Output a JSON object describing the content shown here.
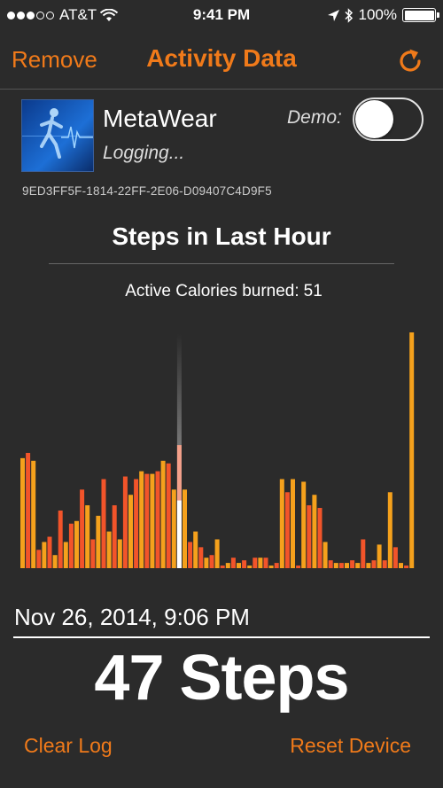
{
  "status_bar": {
    "carrier": "AT&T",
    "signal_bars": 3,
    "time": "9:41 PM",
    "battery": "100%",
    "icons": [
      "signal-dots-icon",
      "wifi-icon",
      "location-arrow-icon",
      "bluetooth-icon",
      "battery-icon"
    ]
  },
  "nav": {
    "remove_label": "Remove",
    "title": "Activity Data",
    "refresh_icon": "refresh-icon"
  },
  "device": {
    "name": "MetaWear",
    "status": "Logging...",
    "demo_label": "Demo:",
    "demo_enabled": false,
    "uuid": "9ED3FF5F-1814-22FF-2E06-D09407C4D9F5"
  },
  "section": {
    "title": "Steps in Last Hour"
  },
  "calories": {
    "label": "Active Calories burned:",
    "value": "51"
  },
  "colors": {
    "accent": "#f07a1a",
    "bar_orange": "#f5a11c",
    "bar_red": "#f2542a",
    "background": "#2b2b2b"
  },
  "chart_data": {
    "type": "bar",
    "y_unit": "steps",
    "ylim": [
      0,
      90
    ],
    "selected_index": 29,
    "values": [
      42,
      44,
      41,
      7,
      10,
      12,
      5,
      22,
      10,
      17,
      18,
      30,
      24,
      11,
      20,
      34,
      14,
      24,
      11,
      35,
      28,
      34,
      37,
      36,
      36,
      37,
      41,
      40,
      30,
      47,
      30,
      10,
      14,
      8,
      4,
      5,
      11,
      1,
      2,
      4,
      2,
      3,
      1,
      4,
      4,
      4,
      1,
      2,
      34,
      29,
      34,
      1,
      33,
      24,
      28,
      23,
      10,
      3,
      2,
      2,
      2,
      3,
      2,
      11,
      2,
      3,
      9,
      3,
      29,
      8,
      2,
      1,
      90
    ]
  },
  "selection": {
    "timestamp": "Nov 26, 2014, 9:06 PM",
    "steps_value": "47",
    "steps_unit": "Steps"
  },
  "footer": {
    "clear_label": "Clear Log",
    "reset_label": "Reset Device"
  }
}
